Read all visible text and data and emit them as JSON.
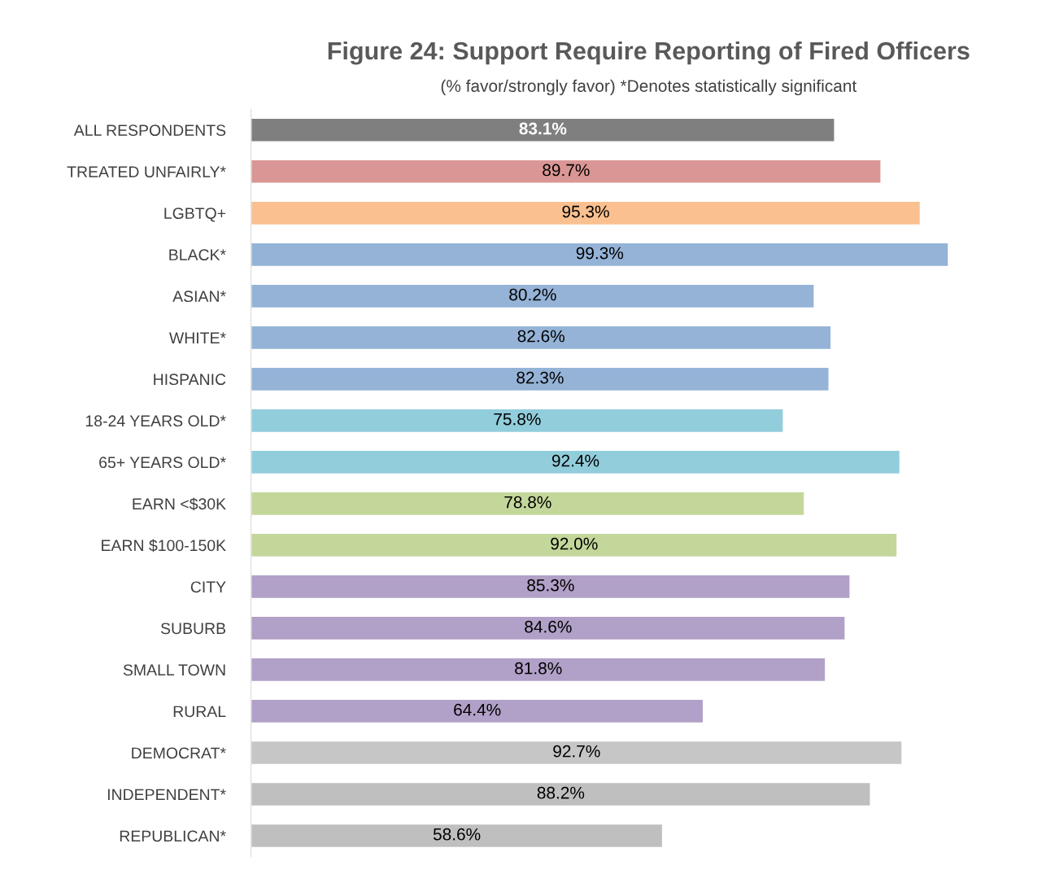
{
  "chart_data": {
    "type": "bar",
    "orientation": "horizontal",
    "title": "Figure 24: Support Require Reporting of Fired Officers",
    "subtitle": "(% favor/strongly favor) *Denotes statistically significant",
    "categories": [
      "ALL RESPONDENTS",
      "TREATED UNFAIRLY*",
      "LGBTQ+",
      "BLACK*",
      "ASIAN*",
      "WHITE*",
      "HISPANIC",
      "18-24 YEARS OLD*",
      "65+ YEARS OLD*",
      "EARN <$30K",
      "EARN $100-150K",
      "CITY",
      "SUBURB",
      "SMALL TOWN",
      "RURAL",
      "DEMOCRAT*",
      "INDEPENDENT*",
      "REPUBLICAN*"
    ],
    "values": [
      83.1,
      89.7,
      95.3,
      99.3,
      80.2,
      82.6,
      82.3,
      75.8,
      92.4,
      78.8,
      92.0,
      85.3,
      84.6,
      81.8,
      64.4,
      92.7,
      88.2,
      58.6
    ],
    "value_labels": [
      "83.1%",
      "89.7%",
      "95.3%",
      "99.3%",
      "80.2%",
      "82.6%",
      "82.3%",
      "75.8%",
      "92.4%",
      "78.8%",
      "92.0%",
      "85.3%",
      "84.6%",
      "81.8%",
      "64.4%",
      "92.7%",
      "88.2%",
      "58.6%"
    ],
    "colors": [
      "#7f7f7f",
      "#da9694",
      "#fac090",
      "#95b3d7",
      "#95b3d7",
      "#95b3d7",
      "#95b3d7",
      "#92cddc",
      "#92cddc",
      "#c4d79b",
      "#c4d79b",
      "#b1a0c7",
      "#b1a0c7",
      "#b1a0c7",
      "#b1a0c7",
      "#c6c6c6",
      "#bfbfbf",
      "#bfbfbf"
    ],
    "grid": false
  }
}
